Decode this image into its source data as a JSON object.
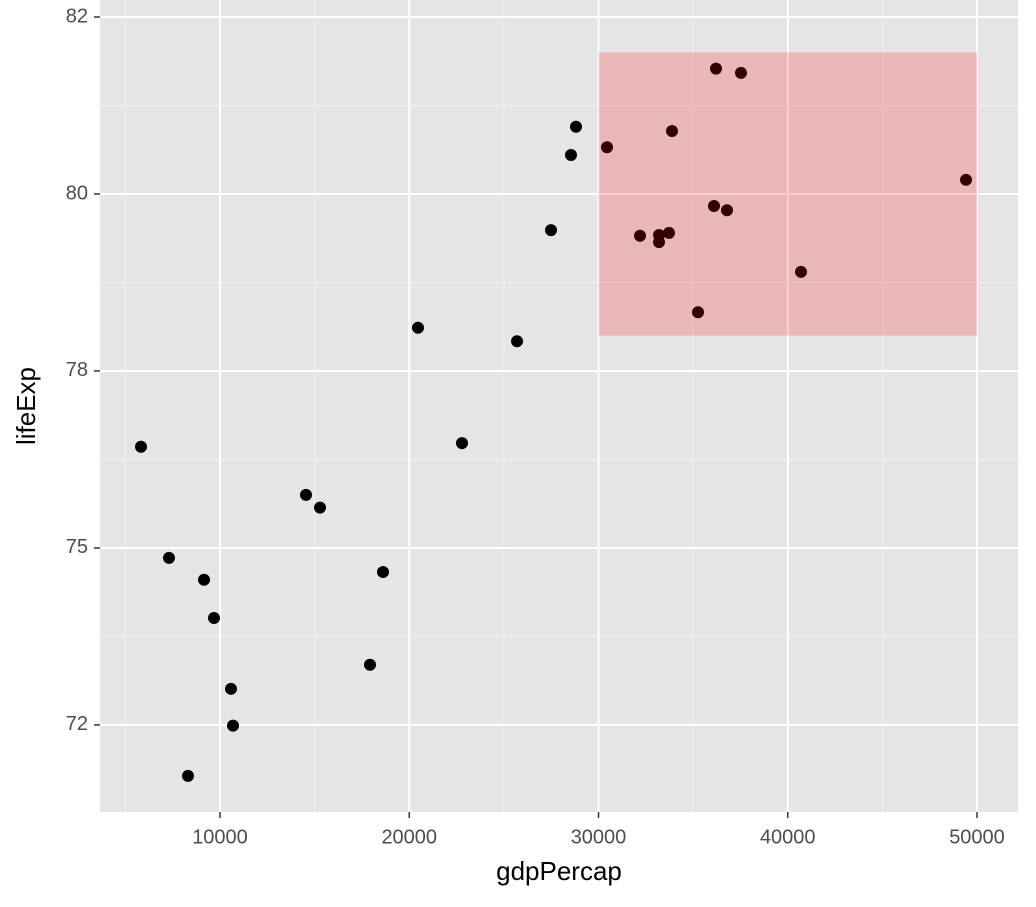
{
  "chart_data": {
    "type": "scatter",
    "x_label": "gdpPercap",
    "y_label": "lifeExp",
    "x": [
      5826,
      7305,
      9155,
      9683,
      10581,
      10687,
      8309,
      14544,
      15284,
      18613,
      17926,
      20462,
      22787,
      25694,
      27490,
      28547,
      28811,
      30449,
      32193,
      33197,
      33197,
      33725,
      33884,
      36103,
      36790,
      36209,
      37530,
      35258,
      40700,
      49419
    ],
    "values": [
      76.43,
      74.86,
      74.55,
      74.01,
      73.01,
      72.49,
      71.78,
      75.75,
      75.57,
      74.66,
      73.35,
      78.11,
      76.48,
      77.92,
      79.49,
      80.55,
      80.95,
      80.66,
      79.41,
      79.42,
      79.32,
      79.45,
      80.89,
      79.83,
      79.77,
      81.77,
      81.71,
      78.33,
      78.9,
      80.2
    ],
    "color": "#000000",
    "xlim": [
      3659,
      52166
    ],
    "ylim": [
      71.27,
      82.74
    ],
    "xticks": [
      10000,
      20000,
      30000,
      40000,
      50000
    ],
    "yticks": [
      {
        "value": 72.5,
        "label": "72"
      },
      75,
      {
        "value": 77.5,
        "label": "78"
      },
      80,
      {
        "value": 82.5,
        "label": "82"
      }
    ],
    "x_minor_ticks": [
      5000,
      15000,
      25000,
      35000,
      45000
    ],
    "y_minor_ticks": [
      73.75,
      76.25,
      78.75,
      81.25
    ],
    "grid": true,
    "highlight": {
      "xlim": [
        30000,
        50000
      ],
      "ylim": [
        78,
        82
      ],
      "color": "#ff0000",
      "opacity": 0.2
    }
  }
}
